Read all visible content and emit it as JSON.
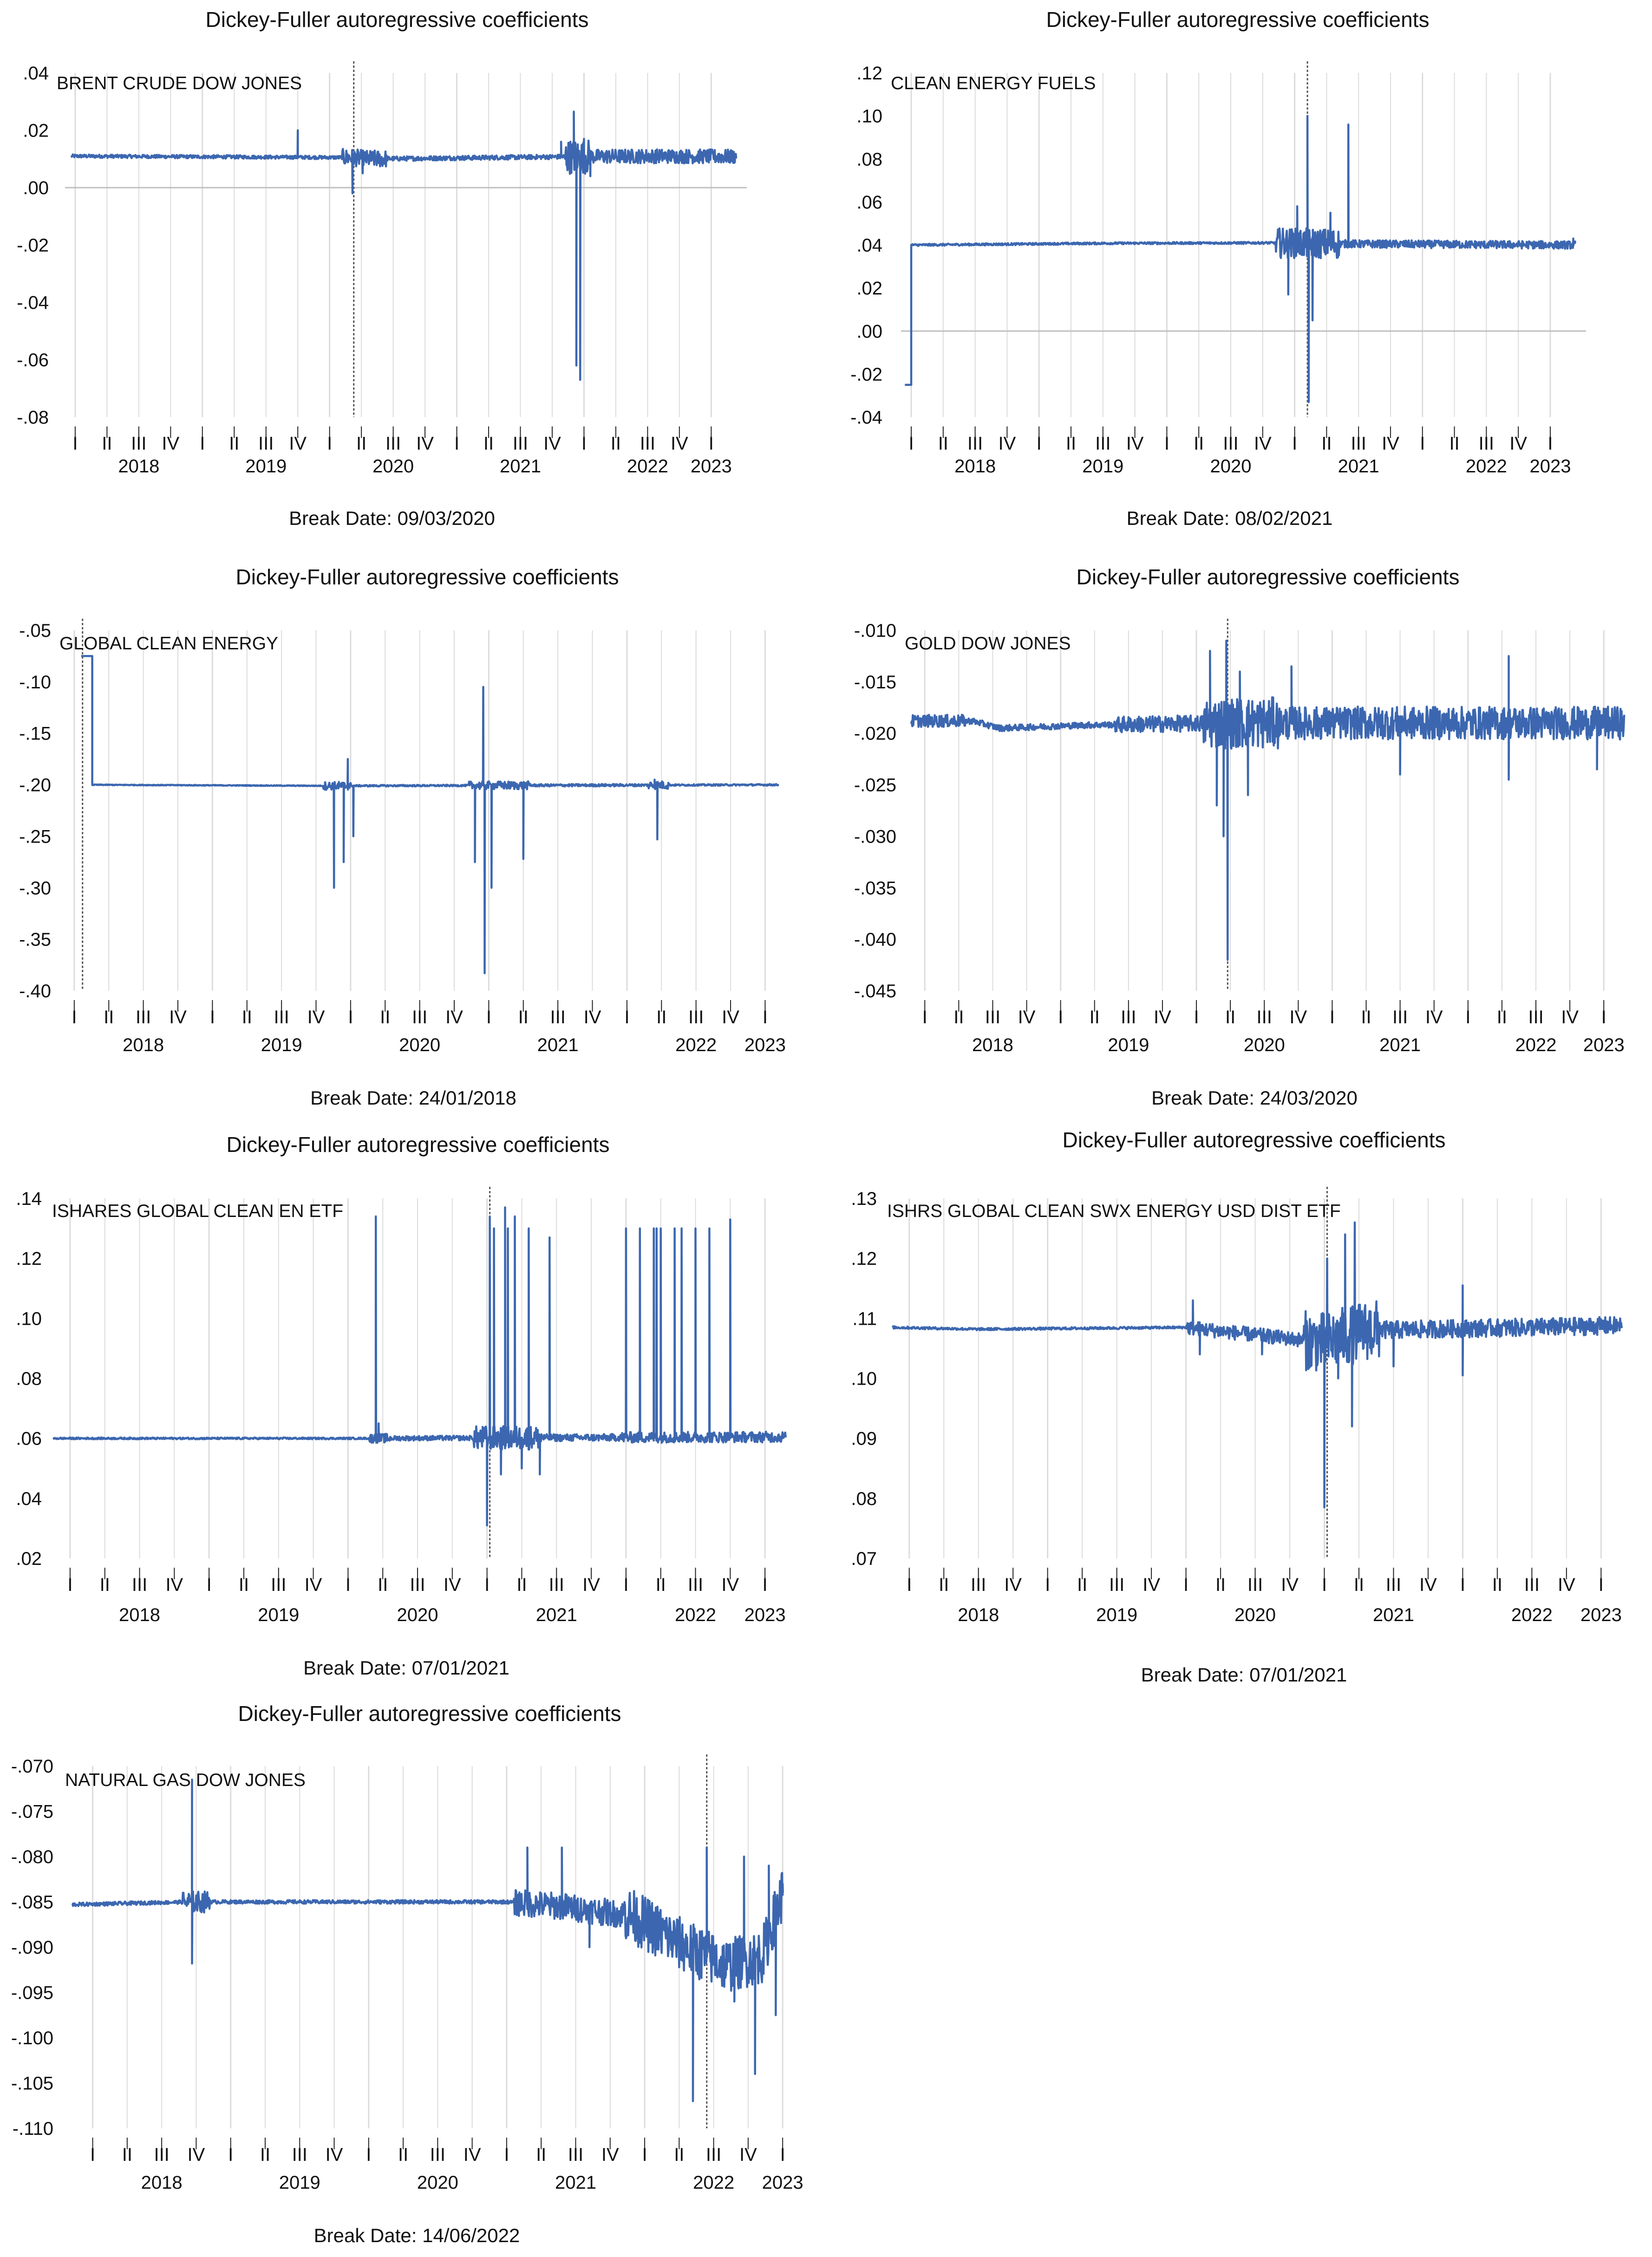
{
  "line_color": "#3c67b0",
  "grid_color": "#dcdcdc",
  "zero_color": "#bfbfbf",
  "break_color": "#555555",
  "chart_data": [
    {
      "type": "line",
      "title": "Dickey-Fuller autoregressive coefficients",
      "series_name": "BRENT CRUDE DOW JONES",
      "break_label": "Break Date: 09/03/2020",
      "break_t": 2020.19,
      "start_t": 2017.97,
      "ylim": [
        -0.08,
        0.04
      ],
      "yticks": [
        0.04,
        0.02,
        0.0,
        -0.02,
        -0.04,
        -0.06,
        -0.08
      ],
      "ytick_labels": [
        ".04",
        ".02",
        ".00",
        "-.02",
        "-.04",
        "-.06",
        "-.08"
      ],
      "zero_line": 0.0,
      "xlim": [
        2017.92,
        2023.28
      ],
      "quarter_start": 2018.0,
      "quarter_end": 2023.0,
      "year_labels": [
        "2018",
        "2019",
        "2020",
        "2021",
        "2022",
        "2023"
      ],
      "baseline": [
        [
          2018.0,
          0.011
        ],
        [
          2020.18,
          0.0105
        ],
        [
          2020.3,
          0.01
        ],
        [
          2021.88,
          0.0108
        ],
        [
          2022.6,
          0.011
        ],
        [
          2023.2,
          0.0108
        ]
      ],
      "noise": [
        [
          2017.97,
          2020.1,
          0.0006
        ],
        [
          2020.1,
          2020.45,
          0.003
        ],
        [
          2020.45,
          2021.85,
          0.0008
        ],
        [
          2021.85,
          2022.05,
          0.006
        ],
        [
          2022.05,
          2023.2,
          0.0025
        ]
      ],
      "spikes": [
        [
          2019.75,
          0.02
        ],
        [
          2020.18,
          -0.002
        ],
        [
          2020.2,
          0.009
        ],
        [
          2020.26,
          0.005
        ],
        [
          2021.82,
          0.016
        ],
        [
          2021.92,
          0.0265
        ],
        [
          2021.94,
          -0.062
        ],
        [
          2021.97,
          -0.067
        ],
        [
          2022.0,
          0.017
        ],
        [
          2022.05,
          0.004
        ]
      ]
    },
    {
      "type": "line",
      "title": "Dickey-Fuller autoregressive coefficients",
      "series_name": "CLEAN ENERGY FUELS",
      "break_label": "Break Date: 08/02/2021",
      "break_t": 2021.1,
      "start_t": 2017.95,
      "ylim": [
        -0.04,
        0.12
      ],
      "yticks": [
        0.12,
        0.1,
        0.08,
        0.06,
        0.04,
        0.02,
        0.0,
        -0.02,
        -0.04
      ],
      "ytick_labels": [
        ".12",
        ".10",
        ".08",
        ".06",
        ".04",
        ".02",
        ".00",
        "-.02",
        "-.04"
      ],
      "zero_line": 0.0,
      "xlim": [
        2017.92,
        2023.28
      ],
      "quarter_start": 2018.0,
      "quarter_end": 2023.0,
      "year_labels": [
        "2018",
        "2019",
        "2020",
        "2021",
        "2022",
        "2023"
      ],
      "baseline": [
        [
          2017.95,
          -0.025
        ],
        [
          2018.0,
          -0.025
        ],
        [
          2018.0,
          0.04
        ],
        [
          2019.5,
          0.0408
        ],
        [
          2020.8,
          0.041
        ],
        [
          2021.5,
          0.0405
        ],
        [
          2023.2,
          0.04
        ]
      ],
      "noise": [
        [
          2018.0,
          2020.85,
          0.0005
        ],
        [
          2020.85,
          2021.35,
          0.007
        ],
        [
          2021.35,
          2023.2,
          0.0018
        ]
      ],
      "spikes": [
        [
          2020.95,
          0.017
        ],
        [
          2021.02,
          0.058
        ],
        [
          2021.1,
          0.1
        ],
        [
          2021.11,
          -0.033
        ],
        [
          2021.14,
          0.005
        ],
        [
          2021.28,
          0.055
        ],
        [
          2021.42,
          0.096
        ],
        [
          2023.18,
          0.043
        ]
      ]
    },
    {
      "type": "line",
      "title": "Dickey-Fuller autoregressive coefficients",
      "series_name": "GLOBAL CLEAN ENERGY",
      "break_label": "Break Date: 24/01/2018",
      "break_t": 2018.06,
      "start_t": 2018.05,
      "ylim": [
        -0.4,
        -0.05
      ],
      "yticks": [
        -0.05,
        -0.1,
        -0.15,
        -0.2,
        -0.25,
        -0.3,
        -0.35,
        -0.4
      ],
      "ytick_labels": [
        "-.05",
        "-.10",
        "-.15",
        "-.20",
        "-.25",
        "-.30",
        "-.35",
        "-.40"
      ],
      "zero_line": null,
      "xlim": [
        2017.95,
        2023.16
      ],
      "quarter_start": 2018.0,
      "quarter_end": 2023.0,
      "year_labels": [
        "2018",
        "2019",
        "2020",
        "2021",
        "2022",
        "2023"
      ],
      "baseline": [
        [
          2018.05,
          -0.075
        ],
        [
          2018.13,
          -0.075
        ],
        [
          2018.13,
          -0.2
        ],
        [
          2019.85,
          -0.201
        ],
        [
          2023.1,
          -0.2
        ]
      ],
      "noise": [
        [
          2018.13,
          2019.8,
          0.0004
        ],
        [
          2019.8,
          2020.0,
          0.004
        ],
        [
          2020.0,
          2020.85,
          0.0008
        ],
        [
          2020.85,
          2021.3,
          0.004
        ],
        [
          2021.3,
          2022.15,
          0.0012
        ],
        [
          2022.15,
          2022.3,
          0.004
        ],
        [
          2022.3,
          2023.1,
          0.0008
        ]
      ],
      "spikes": [
        [
          2019.88,
          -0.3
        ],
        [
          2019.95,
          -0.275
        ],
        [
          2019.98,
          -0.175
        ],
        [
          2020.02,
          -0.25
        ],
        [
          2020.9,
          -0.275
        ],
        [
          2020.96,
          -0.105
        ],
        [
          2020.97,
          -0.383
        ],
        [
          2021.02,
          -0.3
        ],
        [
          2021.25,
          -0.272
        ],
        [
          2022.22,
          -0.253
        ],
        [
          2022.2,
          -0.195
        ]
      ]
    },
    {
      "type": "line",
      "title": "Dickey-Fuller autoregressive coefficients",
      "series_name": "GOLD DOW JONES",
      "break_label": "Break Date: 24/03/2020",
      "break_t": 2020.23,
      "start_t": 2017.9,
      "ylim": [
        -0.045,
        -0.01
      ],
      "yticks": [
        -0.01,
        -0.015,
        -0.02,
        -0.025,
        -0.03,
        -0.035,
        -0.04,
        -0.045
      ],
      "ytick_labels": [
        "-.010",
        "-.015",
        "-.020",
        "-.025",
        "-.030",
        "-.035",
        "-.040",
        "-.045"
      ],
      "zero_line": null,
      "xlim": [
        2017.9,
        2023.16
      ],
      "quarter_start": 2018.0,
      "quarter_end": 2023.0,
      "year_labels": [
        "2018",
        "2019",
        "2020",
        "2021",
        "2022",
        "2023"
      ],
      "baseline": [
        [
          2017.9,
          -0.0188
        ],
        [
          2018.35,
          -0.0188
        ],
        [
          2018.55,
          -0.0195
        ],
        [
          2019.2,
          -0.0192
        ],
        [
          2020.2,
          -0.019
        ],
        [
          2023.15,
          -0.019
        ]
      ],
      "noise": [
        [
          2017.9,
          2018.3,
          0.0006
        ],
        [
          2018.3,
          2019.4,
          0.0003
        ],
        [
          2019.4,
          2020.05,
          0.0008
        ],
        [
          2020.05,
          2020.6,
          0.0025
        ],
        [
          2020.6,
          2023.15,
          0.0016
        ]
      ],
      "spikes": [
        [
          2020.1,
          -0.012
        ],
        [
          2020.15,
          -0.027
        ],
        [
          2020.2,
          -0.03
        ],
        [
          2020.22,
          -0.011
        ],
        [
          2020.23,
          -0.042
        ],
        [
          2020.32,
          -0.014
        ],
        [
          2020.38,
          -0.026
        ],
        [
          2020.7,
          -0.0135
        ],
        [
          2021.5,
          -0.024
        ],
        [
          2022.3,
          -0.0125
        ],
        [
          2022.3,
          -0.0245
        ],
        [
          2022.95,
          -0.0235
        ]
      ]
    },
    {
      "type": "line",
      "title": "Dickey-Fuller autoregressive coefficients",
      "series_name": "ISHARES GLOBAL CLEAN EN ETF",
      "break_label": "Break Date: 07/01/2021",
      "break_t": 2021.02,
      "start_t": 2017.88,
      "ylim": [
        0.02,
        0.14
      ],
      "yticks": [
        0.14,
        0.12,
        0.1,
        0.08,
        0.06,
        0.04,
        0.02
      ],
      "ytick_labels": [
        ".14",
        ".12",
        ".10",
        ".08",
        ".06",
        ".04",
        ".02"
      ],
      "zero_line": null,
      "xlim": [
        2017.88,
        2023.16
      ],
      "quarter_start": 2018.0,
      "quarter_end": 2023.0,
      "year_labels": [
        "2018",
        "2019",
        "2020",
        "2021",
        "2022",
        "2023"
      ],
      "baseline": [
        [
          2017.88,
          0.06
        ],
        [
          2020.0,
          0.06
        ],
        [
          2023.15,
          0.0605
        ]
      ],
      "noise": [
        [
          2017.88,
          2020.15,
          0.0003
        ],
        [
          2020.15,
          2020.3,
          0.0015
        ],
        [
          2020.3,
          2020.9,
          0.0008
        ],
        [
          2020.9,
          2021.4,
          0.004
        ],
        [
          2021.4,
          2021.95,
          0.0012
        ],
        [
          2021.95,
          2023.15,
          0.0018
        ]
      ],
      "spikes": [
        [
          2020.2,
          0.134
        ],
        [
          2020.22,
          0.065
        ],
        [
          2021.0,
          0.031
        ],
        [
          2021.02,
          0.134
        ],
        [
          2021.05,
          0.13
        ],
        [
          2021.1,
          0.048
        ],
        [
          2021.13,
          0.137
        ],
        [
          2021.15,
          0.13
        ],
        [
          2021.2,
          0.134
        ],
        [
          2021.25,
          0.05
        ],
        [
          2021.3,
          0.13
        ],
        [
          2021.38,
          0.048
        ],
        [
          2021.45,
          0.127
        ],
        [
          2022.0,
          0.13
        ],
        [
          2022.1,
          0.13
        ],
        [
          2022.2,
          0.13
        ],
        [
          2022.22,
          0.13
        ],
        [
          2022.25,
          0.13
        ],
        [
          2022.35,
          0.13
        ],
        [
          2022.4,
          0.13
        ],
        [
          2022.5,
          0.13
        ],
        [
          2022.6,
          0.13
        ],
        [
          2022.75,
          0.133
        ],
        [
          2022.8,
          0.062
        ]
      ]
    },
    {
      "type": "line",
      "title": "Dickey-Fuller autoregressive coefficients",
      "series_name": "ISHRS GLOBAL CLEAN SWX ENERGY USD DIST ETF",
      "break_label": "Break Date: 07/01/2021",
      "break_t": 2021.02,
      "start_t": 2017.88,
      "ylim": [
        0.07,
        0.13
      ],
      "yticks": [
        0.13,
        0.12,
        0.11,
        0.1,
        0.09,
        0.08,
        0.07
      ],
      "ytick_labels": [
        ".13",
        ".12",
        ".11",
        ".10",
        ".09",
        ".08",
        ".07"
      ],
      "zero_line": null,
      "xlim": [
        2017.88,
        2023.16
      ],
      "quarter_start": 2018.0,
      "quarter_end": 2023.0,
      "year_labels": [
        "2018",
        "2019",
        "2020",
        "2021",
        "2022",
        "2023"
      ],
      "baseline": [
        [
          2017.88,
          0.1085
        ],
        [
          2018.5,
          0.1082
        ],
        [
          2020.0,
          0.1085
        ],
        [
          2021.0,
          0.106
        ],
        [
          2021.3,
          0.108
        ],
        [
          2023.15,
          0.1088
        ]
      ],
      "noise": [
        [
          2017.88,
          2020.0,
          0.0002
        ],
        [
          2020.0,
          2020.85,
          0.0012
        ],
        [
          2020.85,
          2021.4,
          0.005
        ],
        [
          2021.4,
          2023.15,
          0.0015
        ]
      ],
      "spikes": [
        [
          2020.05,
          0.113
        ],
        [
          2020.1,
          0.104
        ],
        [
          2020.55,
          0.104
        ],
        [
          2020.9,
          0.102
        ],
        [
          2021.0,
          0.0785
        ],
        [
          2021.02,
          0.12
        ],
        [
          2021.1,
          0.1
        ],
        [
          2021.15,
          0.124
        ],
        [
          2021.2,
          0.092
        ],
        [
          2021.22,
          0.126
        ],
        [
          2021.5,
          0.102
        ],
        [
          2022.0,
          0.1155
        ],
        [
          2022.0,
          0.1005
        ]
      ]
    },
    {
      "type": "line",
      "title": "Dickey-Fuller autoregressive coefficients",
      "series_name": "NATURAL GAS DOW JONES",
      "break_label": "Break Date: 14/06/2022",
      "break_t": 2022.45,
      "start_t": 2017.85,
      "ylim": [
        -0.11,
        -0.07
      ],
      "yticks": [
        -0.07,
        -0.075,
        -0.08,
        -0.085,
        -0.09,
        -0.095,
        -0.1,
        -0.105,
        -0.11
      ],
      "ytick_labels": [
        "-.070",
        "-.075",
        "-.080",
        "-.085",
        "-.090",
        "-.095",
        "-.100",
        "-.105",
        "-.110"
      ],
      "zero_line": null,
      "xlim": [
        2017.85,
        2023.05
      ],
      "quarter_start": 2018.0,
      "quarter_end": 2023.0,
      "year_labels": [
        "2018",
        "2019",
        "2020",
        "2021",
        "2022",
        "2023"
      ],
      "baseline": [
        [
          2017.85,
          -0.0853
        ],
        [
          2018.7,
          -0.085
        ],
        [
          2021.0,
          -0.085
        ],
        [
          2021.4,
          -0.0855
        ],
        [
          2021.9,
          -0.0865
        ],
        [
          2022.3,
          -0.09
        ],
        [
          2022.6,
          -0.092
        ],
        [
          2022.85,
          -0.091
        ],
        [
          2023.0,
          -0.084
        ]
      ],
      "noise": [
        [
          2017.85,
          2018.65,
          0.0002
        ],
        [
          2018.65,
          2018.85,
          0.0012
        ],
        [
          2018.85,
          2021.05,
          0.0002
        ],
        [
          2021.05,
          2021.85,
          0.0015
        ],
        [
          2021.85,
          2023.0,
          0.003
        ]
      ],
      "spikes": [
        [
          2018.72,
          -0.0715
        ],
        [
          2018.72,
          -0.0918
        ],
        [
          2021.15,
          -0.079
        ],
        [
          2021.4,
          -0.079
        ],
        [
          2021.6,
          -0.09
        ],
        [
          2022.35,
          -0.107
        ],
        [
          2022.45,
          -0.079
        ],
        [
          2022.65,
          -0.096
        ],
        [
          2022.72,
          -0.08
        ],
        [
          2022.8,
          -0.104
        ],
        [
          2022.9,
          -0.081
        ],
        [
          2022.95,
          -0.0975
        ],
        [
          2023.0,
          -0.083
        ]
      ]
    }
  ]
}
